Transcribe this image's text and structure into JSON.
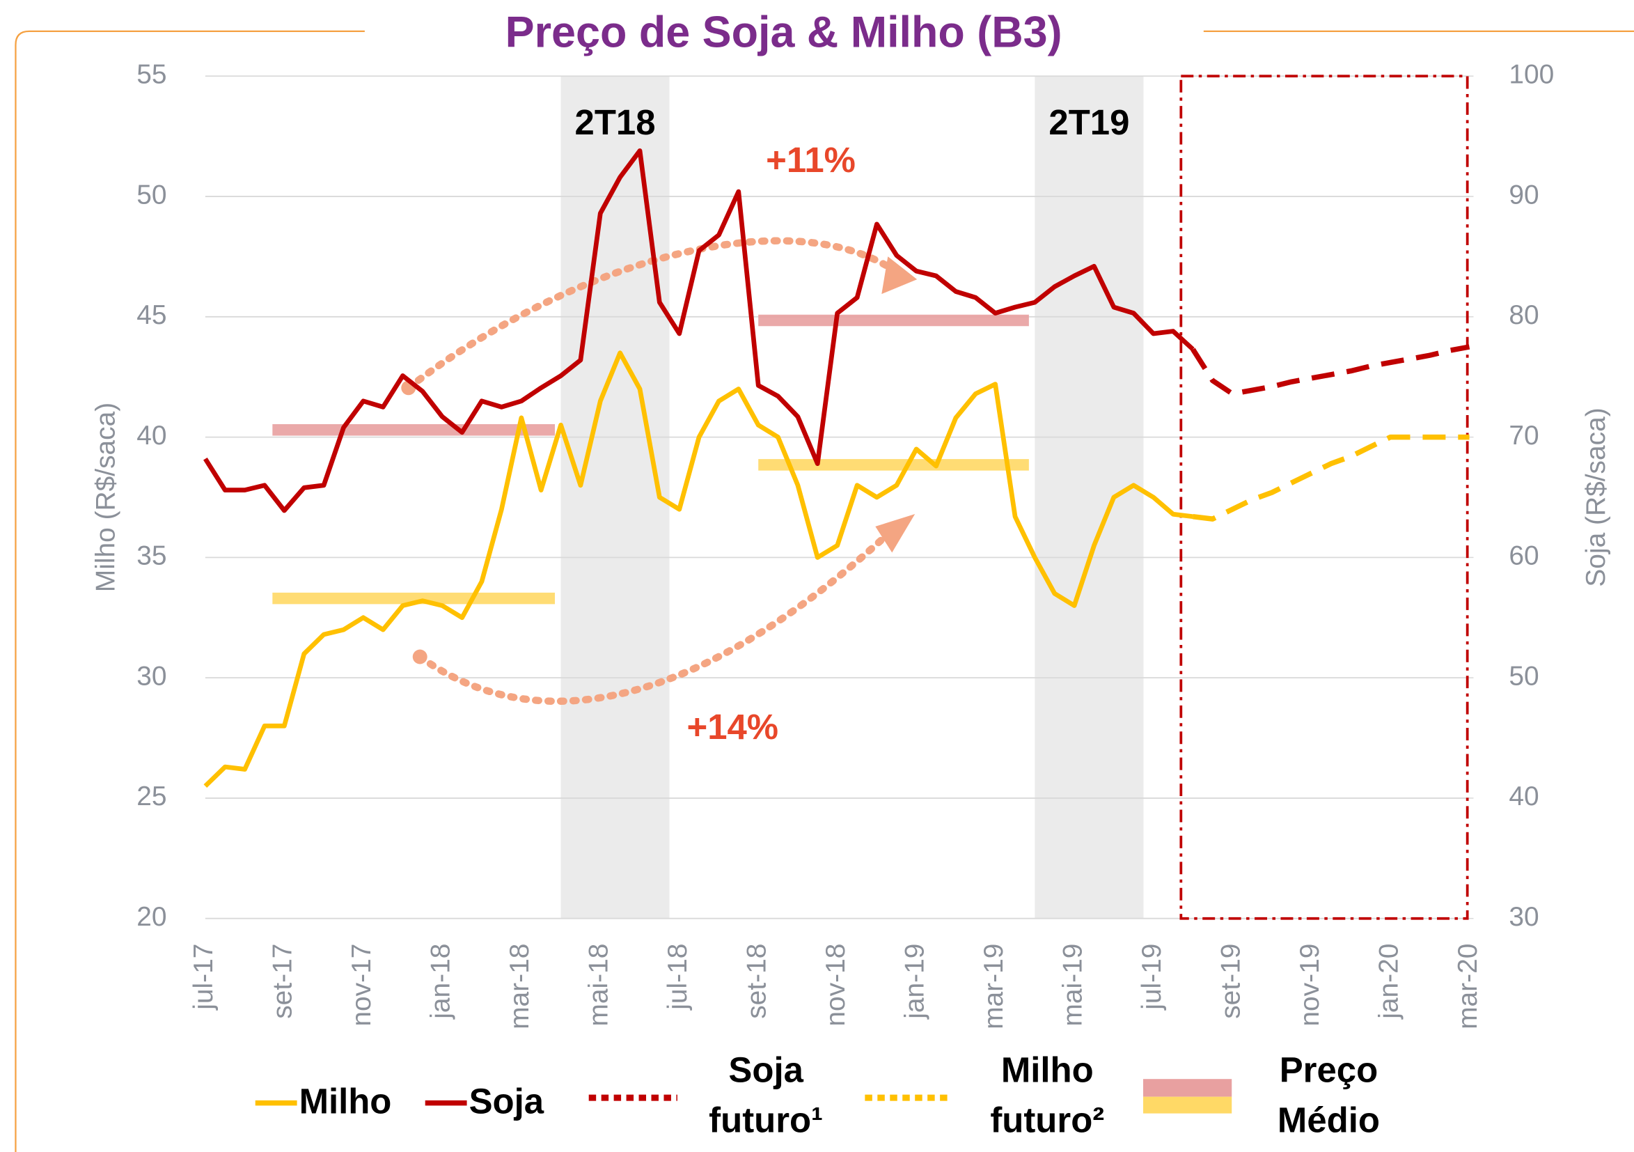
{
  "chart_data": {
    "type": "line",
    "title": "Preço de Soja & Milho (B3)",
    "ylabel": "Milho  (R$/saca)",
    "y2label": "Soja (R$/saca)",
    "categories": [
      "jul-17",
      null,
      null,
      null,
      "set-17",
      null,
      null,
      null,
      "nov-17",
      null,
      null,
      null,
      "jan-18",
      null,
      null,
      null,
      "mar-18",
      null,
      null,
      null,
      "mai-18",
      null,
      null,
      null,
      "jul-18",
      null,
      null,
      null,
      "set-18",
      null,
      null,
      null,
      "nov-18",
      null,
      null,
      null,
      "jan-19",
      null,
      null,
      null,
      "mar-19",
      null,
      null,
      null,
      "mai-19",
      null,
      null,
      null,
      "jul-19",
      null,
      null,
      null,
      "set-19",
      null,
      null,
      null,
      "nov-19",
      null,
      null,
      null,
      "jan-20",
      null,
      null,
      null,
      "mar-20"
    ],
    "ylim": [
      20,
      55
    ],
    "yticks": [
      20,
      25,
      30,
      35,
      40,
      45,
      50,
      55
    ],
    "y2lim": [
      30,
      100
    ],
    "y2ticks": [
      30,
      40,
      50,
      60,
      70,
      80,
      90,
      100
    ],
    "grid": true,
    "series": [
      {
        "name": "Milho",
        "color": "#FFC000",
        "style": "solid",
        "axis": "y",
        "values": [
          25.5,
          26.3,
          26.2,
          28.0,
          28.0,
          31.0,
          31.8,
          32.0,
          32.5,
          32.0,
          33.0,
          33.2,
          33.0,
          32.5,
          34.0,
          37.0,
          40.8,
          37.8,
          40.5,
          38.0,
          41.5,
          43.5,
          42.0,
          37.5,
          37.0,
          40.0,
          41.5,
          42.0,
          40.5,
          40.0,
          38.0,
          35.0,
          35.5,
          38.0,
          37.5,
          38.0,
          39.5,
          38.8,
          40.8,
          41.8,
          42.2,
          36.7,
          35.0,
          33.5,
          33.0,
          35.5,
          37.5,
          38.0,
          37.5,
          36.8,
          36.7,
          null,
          null,
          null,
          null,
          null,
          null,
          null,
          null,
          null,
          null,
          null,
          null,
          null,
          null
        ]
      },
      {
        "name": "Soja",
        "color": "#C00000",
        "style": "solid",
        "axis": "y2",
        "values": [
          68.2,
          65.6,
          65.6,
          66.0,
          63.9,
          65.8,
          66.0,
          70.8,
          73.0,
          72.5,
          75.1,
          73.8,
          71.7,
          70.4,
          73.0,
          72.5,
          73.0,
          74.1,
          75.1,
          76.4,
          88.6,
          91.6,
          93.8,
          81.2,
          78.6,
          85.5,
          86.8,
          90.4,
          74.3,
          73.4,
          71.7,
          67.8,
          80.3,
          81.6,
          87.7,
          85.1,
          83.8,
          83.4,
          82.1,
          81.6,
          80.3,
          80.8,
          81.2,
          82.5,
          83.4,
          84.2,
          80.8,
          80.3,
          78.6,
          78.8,
          77.3,
          null,
          null,
          null,
          null,
          null,
          null,
          null,
          null,
          null,
          null,
          null,
          null,
          null,
          null
        ]
      },
      {
        "name": "Soja futuro¹",
        "color": "#C00000",
        "style": "dashed",
        "axis": "y2",
        "values": [
          null,
          null,
          null,
          null,
          null,
          null,
          null,
          null,
          null,
          null,
          null,
          null,
          null,
          null,
          null,
          null,
          null,
          null,
          null,
          null,
          null,
          null,
          null,
          null,
          null,
          null,
          null,
          null,
          null,
          null,
          null,
          null,
          null,
          null,
          null,
          null,
          null,
          null,
          null,
          null,
          null,
          null,
          null,
          null,
          null,
          null,
          null,
          null,
          null,
          null,
          77.3,
          74.7,
          73.6,
          73.9,
          74.2,
          74.6,
          74.9,
          75.2,
          75.5,
          75.9,
          76.2,
          76.5,
          76.8,
          77.2,
          77.5
        ]
      },
      {
        "name": "Milho futuro²",
        "color": "#FFC000",
        "style": "dashed",
        "axis": "y",
        "values": [
          null,
          null,
          null,
          null,
          null,
          null,
          null,
          null,
          null,
          null,
          null,
          null,
          null,
          null,
          null,
          null,
          null,
          null,
          null,
          null,
          null,
          null,
          null,
          null,
          null,
          null,
          null,
          null,
          null,
          null,
          null,
          null,
          null,
          null,
          null,
          null,
          null,
          null,
          null,
          null,
          null,
          null,
          null,
          null,
          null,
          null,
          null,
          null,
          null,
          null,
          36.7,
          36.6,
          37.0,
          37.4,
          37.7,
          38.1,
          38.5,
          38.9,
          39.2,
          39.6,
          40.0,
          40.0,
          40.0,
          40.0,
          40.0
        ]
      }
    ],
    "average_label": "Preço Médio",
    "averages": [
      {
        "axis": "y2",
        "value": 70.6,
        "from": 3.4,
        "to": 17.7,
        "color": "#E8A0A0"
      },
      {
        "axis": "y2",
        "value": 79.7,
        "from": 28,
        "to": 41.7,
        "color": "#E8A0A0"
      },
      {
        "axis": "y",
        "value": 33.3,
        "from": 3.4,
        "to": 17.7,
        "color": "#FFD966"
      },
      {
        "axis": "y",
        "value": 38.85,
        "from": 28,
        "to": 41.7,
        "color": "#FFD966"
      }
    ],
    "bands": [
      {
        "label": "2T18",
        "start": 18,
        "end": 23.5
      },
      {
        "label": "2T19",
        "start": 42,
        "end": 47.5
      }
    ],
    "forecast_box": {
      "start": 49.4,
      "end": 63.9,
      "color": "#C00000"
    },
    "annotations": [
      "+11%",
      "+14%"
    ]
  }
}
